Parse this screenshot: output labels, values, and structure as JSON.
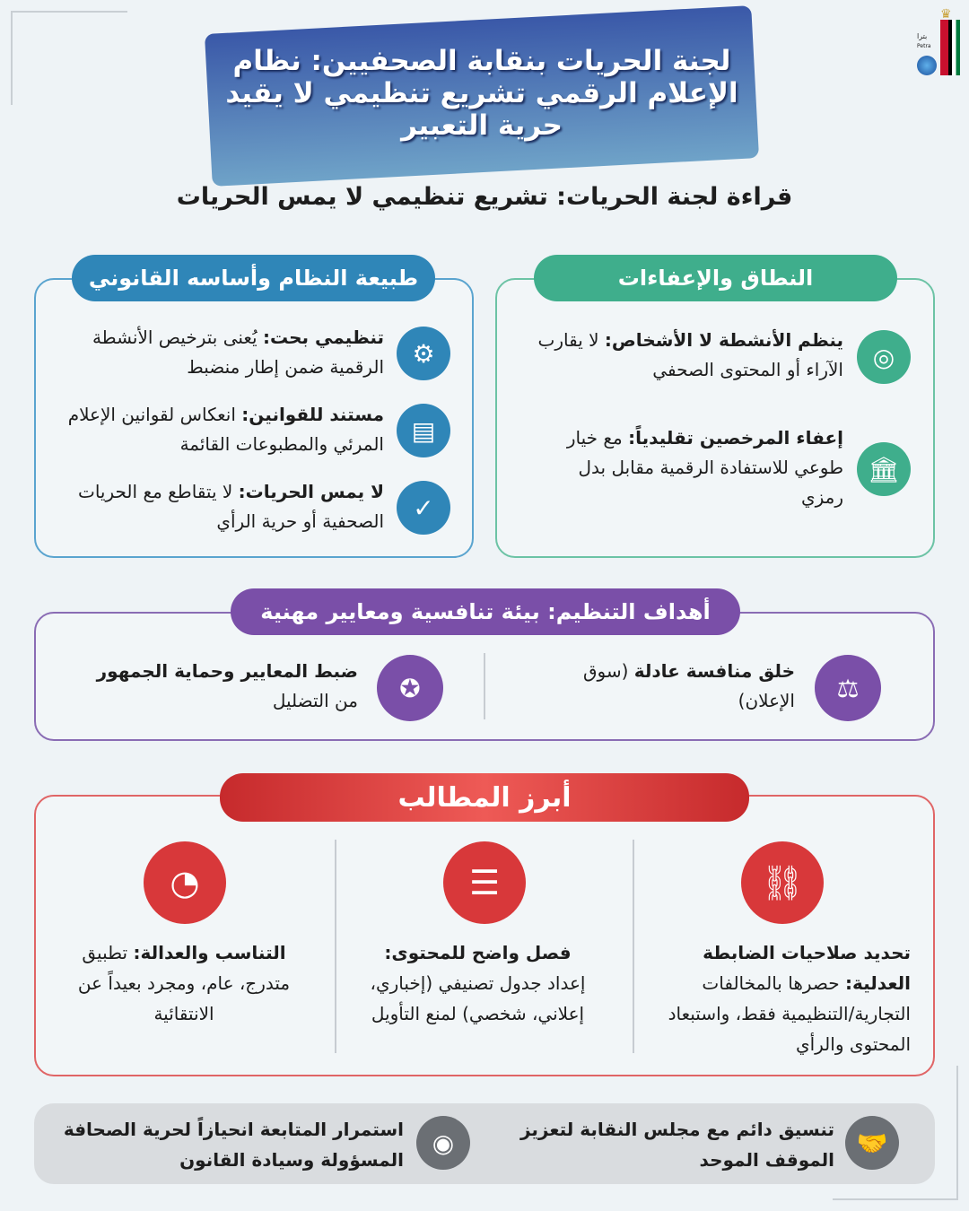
{
  "logo": {
    "text": "بترا",
    "latin": "Petra"
  },
  "header": {
    "title": "لجنة الحريات بنقابة الصحفيين: نظام الإعلام الرقمي تشريع تنظيمي لا يقيد حرية التعبير",
    "subtitle": "قراءة لجنة الحريات: تشريع تنظيمي لا يمس الحريات"
  },
  "scope": {
    "title": "النطاق والإعفاءات",
    "color": "#3fae8c",
    "items": [
      {
        "icon": "target-icon",
        "bold": "ينظم الأنشطة لا الأشخاص:",
        "text": " لا يقارب الآراء أو المحتوى الصحفي"
      },
      {
        "icon": "bank-icon",
        "bold": "إعفاء المرخصين تقليدياً:",
        "text": " مع خيار طوعي للاستفادة الرقمية مقابل بدل رمزي"
      }
    ]
  },
  "nature": {
    "title": "طبيعة النظام وأساسه القانوني",
    "color": "#2f86b8",
    "items": [
      {
        "icon": "gear-icon",
        "bold": "تنظيمي بحت:",
        "text": " يُعنى بترخيص الأنشطة الرقمية ضمن إطار منضبط"
      },
      {
        "icon": "document-icon",
        "bold": "مستند للقوانين:",
        "text": " انعكاس لقوانين الإعلام المرئي والمطبوعات القائمة"
      },
      {
        "icon": "shield-check-icon",
        "bold": "لا يمس الحريات:",
        "text": " لا يتقاطع مع الحريات الصحفية أو حرية الرأي"
      }
    ]
  },
  "goals": {
    "title": "أهداف التنظيم: بيئة تنافسية ومعايير مهنية",
    "color": "#7a4fa8",
    "items": [
      {
        "icon": "scale-icon",
        "bold": "خلق منافسة عادلة",
        "text": " (سوق الإعلان)"
      },
      {
        "icon": "award-icon",
        "bold": "ضبط المعايير وحماية الجمهور",
        "text": " من التضليل"
      }
    ]
  },
  "demands": {
    "title": "أبرز المطالب",
    "color": "#d8383a",
    "items": [
      {
        "icon": "handcuffs-icon",
        "bold": "تحديد صلاحيات الضابطة العدلية:",
        "text": " حصرها بالمخالفات التجارية/التنظيمية فقط، واستبعاد المحتوى والرأي"
      },
      {
        "icon": "layers-icon",
        "bold": "فصل واضح للمحتوى:",
        "text": " إعداد جدول تصنيفي (إخباري، إعلاني، شخصي) لمنع التأويل"
      },
      {
        "icon": "gauge-icon",
        "bold": "التناسب والعدالة:",
        "text": " تطبيق متدرج، عام، ومجرد بعيداً عن الانتقائية"
      }
    ]
  },
  "footer": {
    "color": "#6b6f74",
    "items": [
      {
        "icon": "handshake-icon",
        "text": "تنسيق دائم مع مجلس النقابة لتعزيز الموقف الموحد"
      },
      {
        "icon": "eye-icon",
        "text": "استمرار المتابعة انحيازاً لحرية الصحافة المسؤولة وسيادة القانون"
      }
    ]
  }
}
